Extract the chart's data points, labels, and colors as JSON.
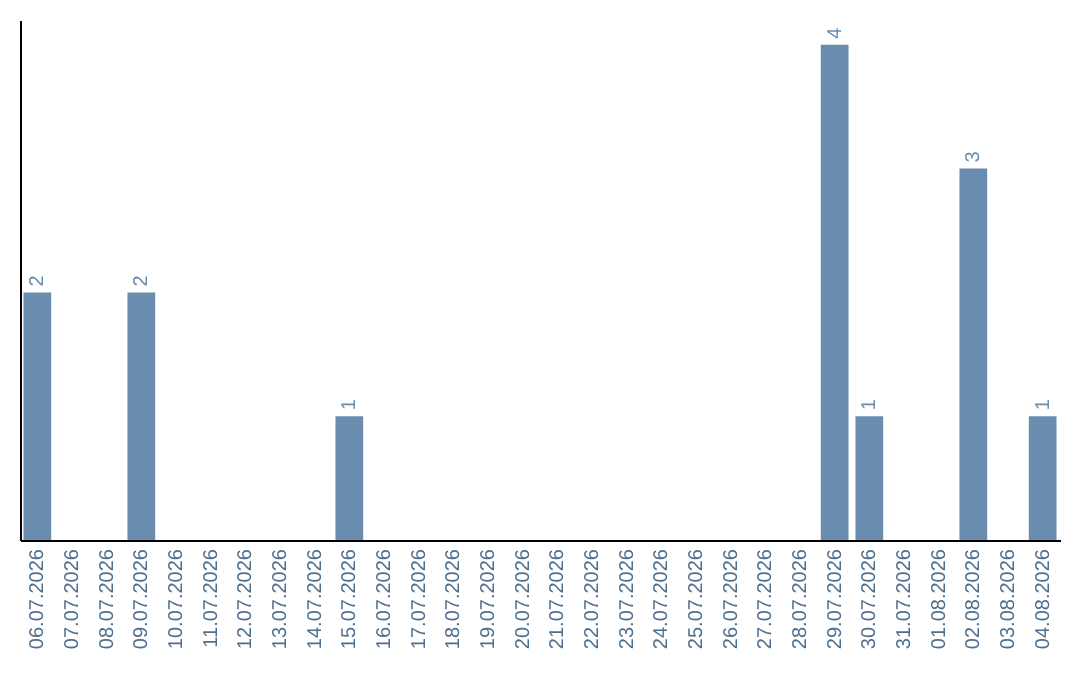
{
  "chart_data": {
    "type": "bar",
    "categories": [
      "06.07.2026",
      "07.07.2026",
      "08.07.2026",
      "09.07.2026",
      "10.07.2026",
      "11.07.2026",
      "12.07.2026",
      "13.07.2026",
      "14.07.2026",
      "15.07.2026",
      "16.07.2026",
      "17.07.2026",
      "18.07.2026",
      "19.07.2026",
      "20.07.2026",
      "21.07.2026",
      "22.07.2026",
      "23.07.2026",
      "24.07.2026",
      "25.07.2026",
      "26.07.2026",
      "27.07.2026",
      "28.07.2026",
      "29.07.2026",
      "30.07.2026",
      "31.07.2026",
      "01.08.2026",
      "02.08.2026",
      "03.08.2026",
      "04.08.2026"
    ],
    "values": [
      2,
      0,
      0,
      2,
      0,
      0,
      0,
      0,
      0,
      1,
      0,
      0,
      0,
      0,
      0,
      0,
      0,
      0,
      0,
      0,
      0,
      0,
      0,
      4,
      1,
      0,
      0,
      3,
      0,
      1
    ],
    "value_labels": [
      "2",
      null,
      null,
      "2",
      null,
      null,
      null,
      null,
      null,
      "1",
      null,
      null,
      null,
      null,
      null,
      null,
      null,
      null,
      null,
      null,
      null,
      null,
      null,
      "4",
      "1",
      null,
      null,
      "3",
      null,
      "1"
    ],
    "color": "#6a8caf",
    "ylim": [
      0,
      4.2
    ]
  }
}
